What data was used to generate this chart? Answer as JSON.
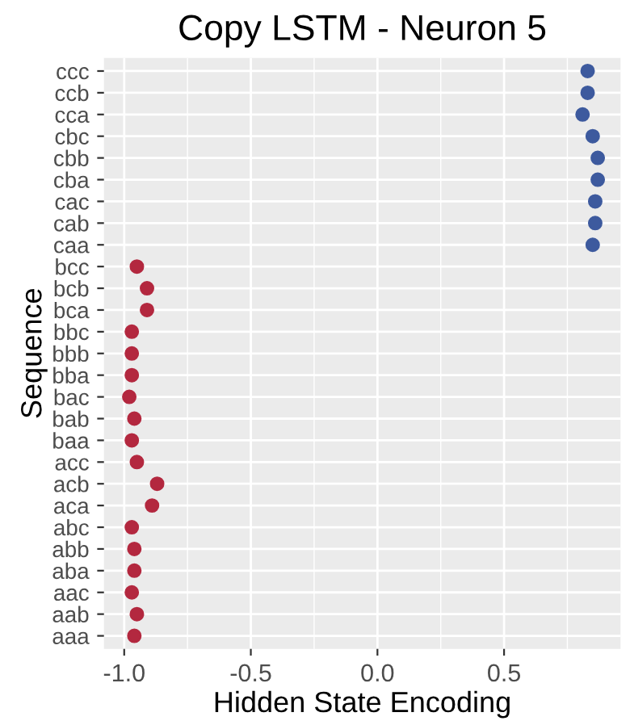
{
  "chart_data": {
    "type": "scatter",
    "orientation": "horizontal",
    "title": "Copy LSTM - Neuron 5",
    "xlabel": "Hidden State Encoding",
    "ylabel": "Sequence",
    "categories": [
      "ccc",
      "ccb",
      "cca",
      "cbc",
      "cbb",
      "cba",
      "cac",
      "cab",
      "caa",
      "bcc",
      "bcb",
      "bca",
      "bbc",
      "bbb",
      "bba",
      "bac",
      "bab",
      "baa",
      "acc",
      "acb",
      "aca",
      "abc",
      "abb",
      "aba",
      "aac",
      "aab",
      "aaa"
    ],
    "values": [
      0.83,
      0.83,
      0.81,
      0.85,
      0.87,
      0.87,
      0.86,
      0.86,
      0.85,
      -0.95,
      -0.91,
      -0.91,
      -0.97,
      -0.97,
      -0.97,
      -0.98,
      -0.96,
      -0.97,
      -0.95,
      -0.87,
      -0.89,
      -0.97,
      -0.96,
      -0.96,
      -0.97,
      -0.95,
      -0.96
    ],
    "colors": [
      "#3d5a9e",
      "#3d5a9e",
      "#3d5a9e",
      "#3d5a9e",
      "#3d5a9e",
      "#3d5a9e",
      "#3d5a9e",
      "#3d5a9e",
      "#3d5a9e",
      "#b3283f",
      "#b3283f",
      "#b3283f",
      "#b3283f",
      "#b3283f",
      "#b3283f",
      "#b3283f",
      "#b3283f",
      "#b3283f",
      "#b3283f",
      "#b3283f",
      "#b3283f",
      "#b3283f",
      "#b3283f",
      "#b3283f",
      "#b3283f",
      "#b3283f",
      "#b3283f"
    ],
    "xlim": [
      -1.08,
      0.96
    ],
    "xticks": [
      {
        "value": -1.0,
        "label": "-1.0"
      },
      {
        "value": -0.5,
        "label": "-0.5"
      },
      {
        "value": 0.0,
        "label": "0.0"
      },
      {
        "value": 0.5,
        "label": "0.5"
      }
    ],
    "grid": true,
    "marker": "circle"
  }
}
